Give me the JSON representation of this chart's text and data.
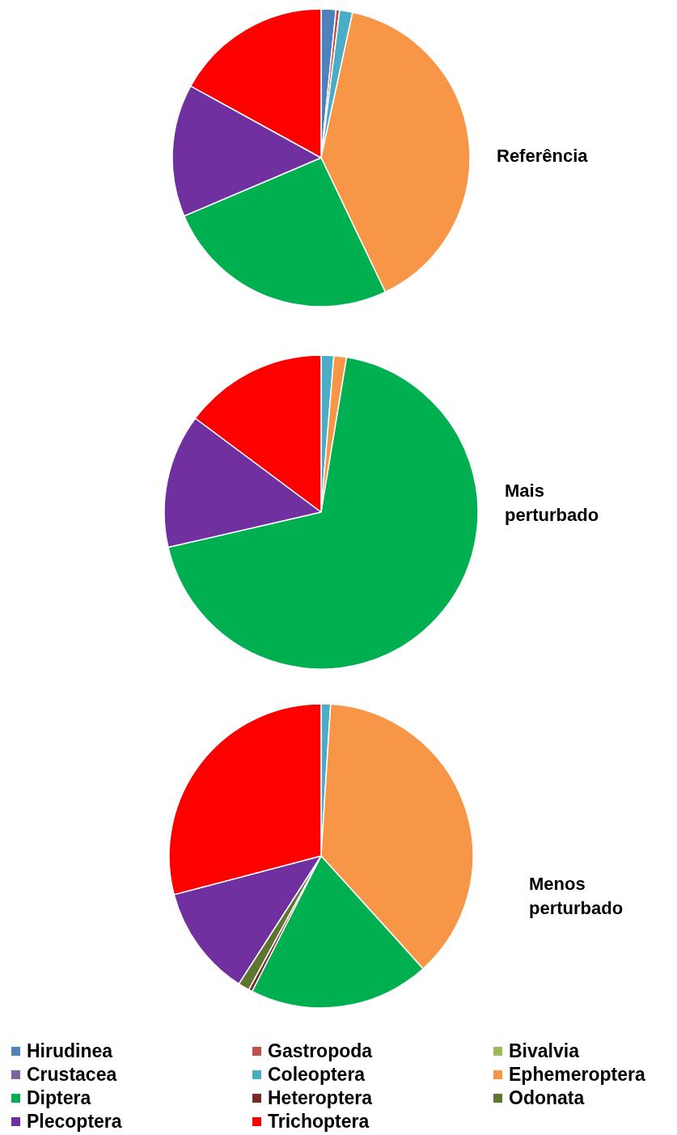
{
  "chart_data": {
    "type": "pie",
    "categories": [
      "Hirudinea",
      "Gastropoda",
      "Bivalvia",
      "Crustacea",
      "Coleoptera",
      "Ephemeroptera",
      "Diptera",
      "Heteroptera",
      "Odonata",
      "Plecoptera",
      "Trichoptera"
    ],
    "colors": [
      "#4f81bd",
      "#c0504d",
      "#9bbb59",
      "#8064a2",
      "#4bacc6",
      "#f79646",
      "#00b050",
      "#772c2a",
      "#5f7530",
      "#7030a0",
      "#ff0000"
    ],
    "series": [
      {
        "name": "Referência",
        "values": [
          1.6,
          0.4,
          0,
          0,
          1.4,
          39.5,
          25.7,
          0,
          0,
          14.4,
          17.0
        ]
      },
      {
        "name": "Mais perturbado",
        "values": [
          0,
          0,
          0,
          0,
          1.3,
          1.3,
          68.8,
          0,
          0,
          13.8,
          14.8
        ]
      },
      {
        "name": "Menos perturbado",
        "values": [
          0,
          0,
          0,
          0,
          1.0,
          37.3,
          19.2,
          0.4,
          1.2,
          11.8,
          29.1
        ]
      }
    ],
    "legend": "bottom"
  }
}
